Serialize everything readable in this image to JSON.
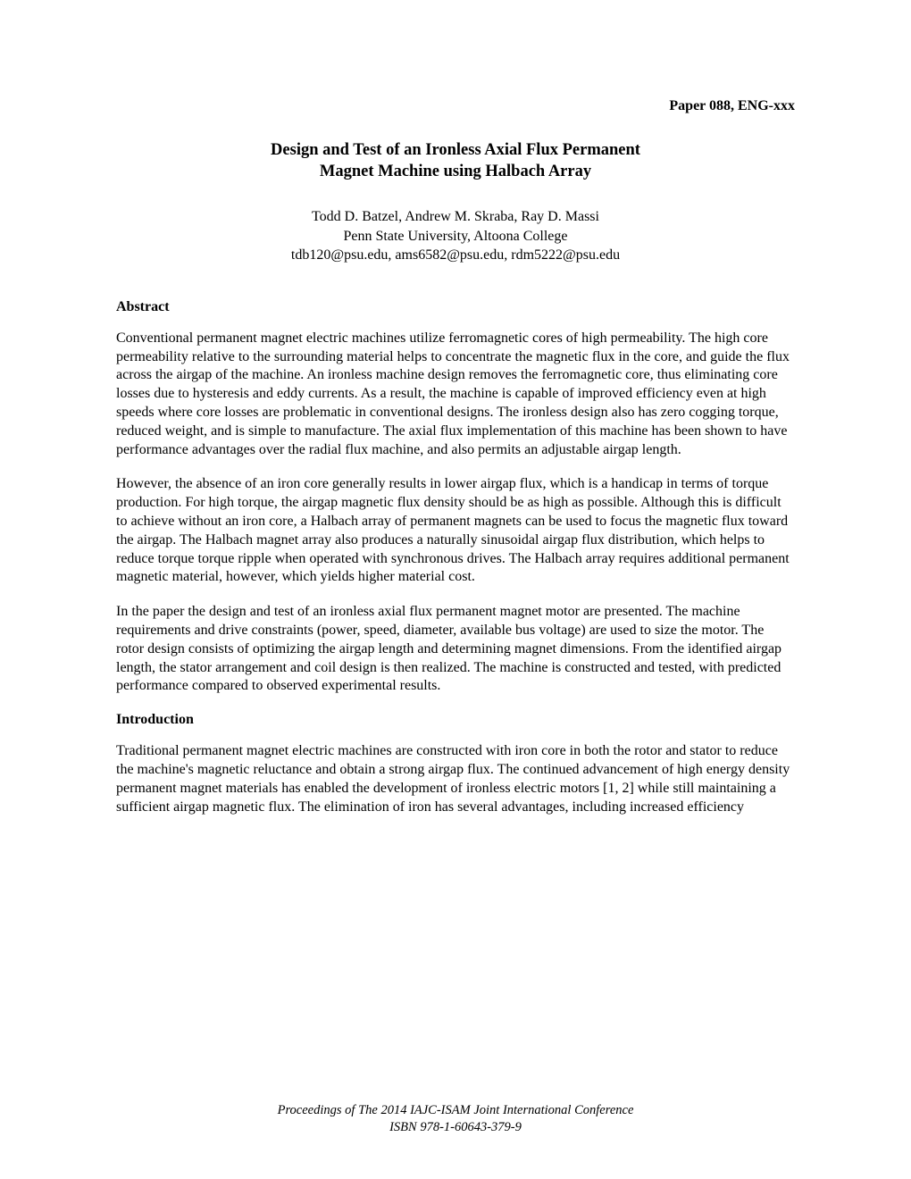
{
  "header": {
    "paper_id": "Paper 088, ENG-xxx"
  },
  "title": {
    "line1": "Design and Test of an Ironless Axial Flux Permanent",
    "line2": "Magnet Machine using Halbach Array"
  },
  "authors": {
    "names": "Todd D. Batzel, Andrew M. Skraba, Ray D. Massi",
    "affiliation": "Penn State University, Altoona College",
    "emails": "tdb120@psu.edu, ams6582@psu.edu, rdm5222@psu.edu"
  },
  "sections": {
    "abstract": {
      "heading": "Abstract",
      "para1": "Conventional permanent magnet electric machines utilize ferromagnetic cores of high permeability.  The high core permeability relative to the surrounding material helps to concentrate the magnetic flux in the core, and guide the flux across the airgap of the machine.  An ironless machine design removes the ferromagnetic core, thus eliminating core losses due to hysteresis and eddy currents.  As a result, the machine is capable of improved efficiency even at high speeds where core losses are problematic in conventional designs.  The ironless design also has zero cogging torque,  reduced weight, and is simple to manufacture.  The axial flux implementation of this machine has been shown to have performance advantages over the radial flux machine, and also permits an adjustable airgap length.",
      "para2": "However, the absence of an iron core generally results in lower airgap flux, which is a handicap in terms of torque production.  For high torque, the airgap magnetic flux density should be as high as possible.  Although this is difficult to achieve without an iron core, a Halbach array of permanent magnets can be used to focus the magnetic flux toward the airgap.  The Halbach magnet array also produces a naturally sinusoidal airgap flux distribution, which helps to reduce torque torque ripple when operated with synchronous drives. The Halbach array requires additional permanent magnetic material, however, which yields higher material cost.",
      "para3": "In the paper the design and test of an ironless axial flux permanent magnet motor are presented.  The machine requirements and drive constraints (power, speed, diameter, available bus voltage) are used to size the motor.  The rotor design consists of optimizing the airgap length and determining magnet dimensions.  From the identified airgap length, the stator arrangement and coil design is then realized.  The machine is constructed and tested, with predicted performance compared to observed experimental results."
    },
    "introduction": {
      "heading": "Introduction",
      "para1": "Traditional permanent magnet electric machines are constructed with iron core in both the rotor and stator to reduce the machine's magnetic reluctance and obtain a strong airgap flux.  The continued advancement of high energy density permanent magnet materials has enabled the development of ironless electric motors [1, 2] while still maintaining a sufficient airgap magnetic flux.  The elimination of iron has several advantages, including increased efficiency"
    }
  },
  "footer": {
    "line1": "Proceedings of The 2014 IAJC-ISAM Joint International Conference",
    "line2": "ISBN 978-1-60643-379-9"
  }
}
